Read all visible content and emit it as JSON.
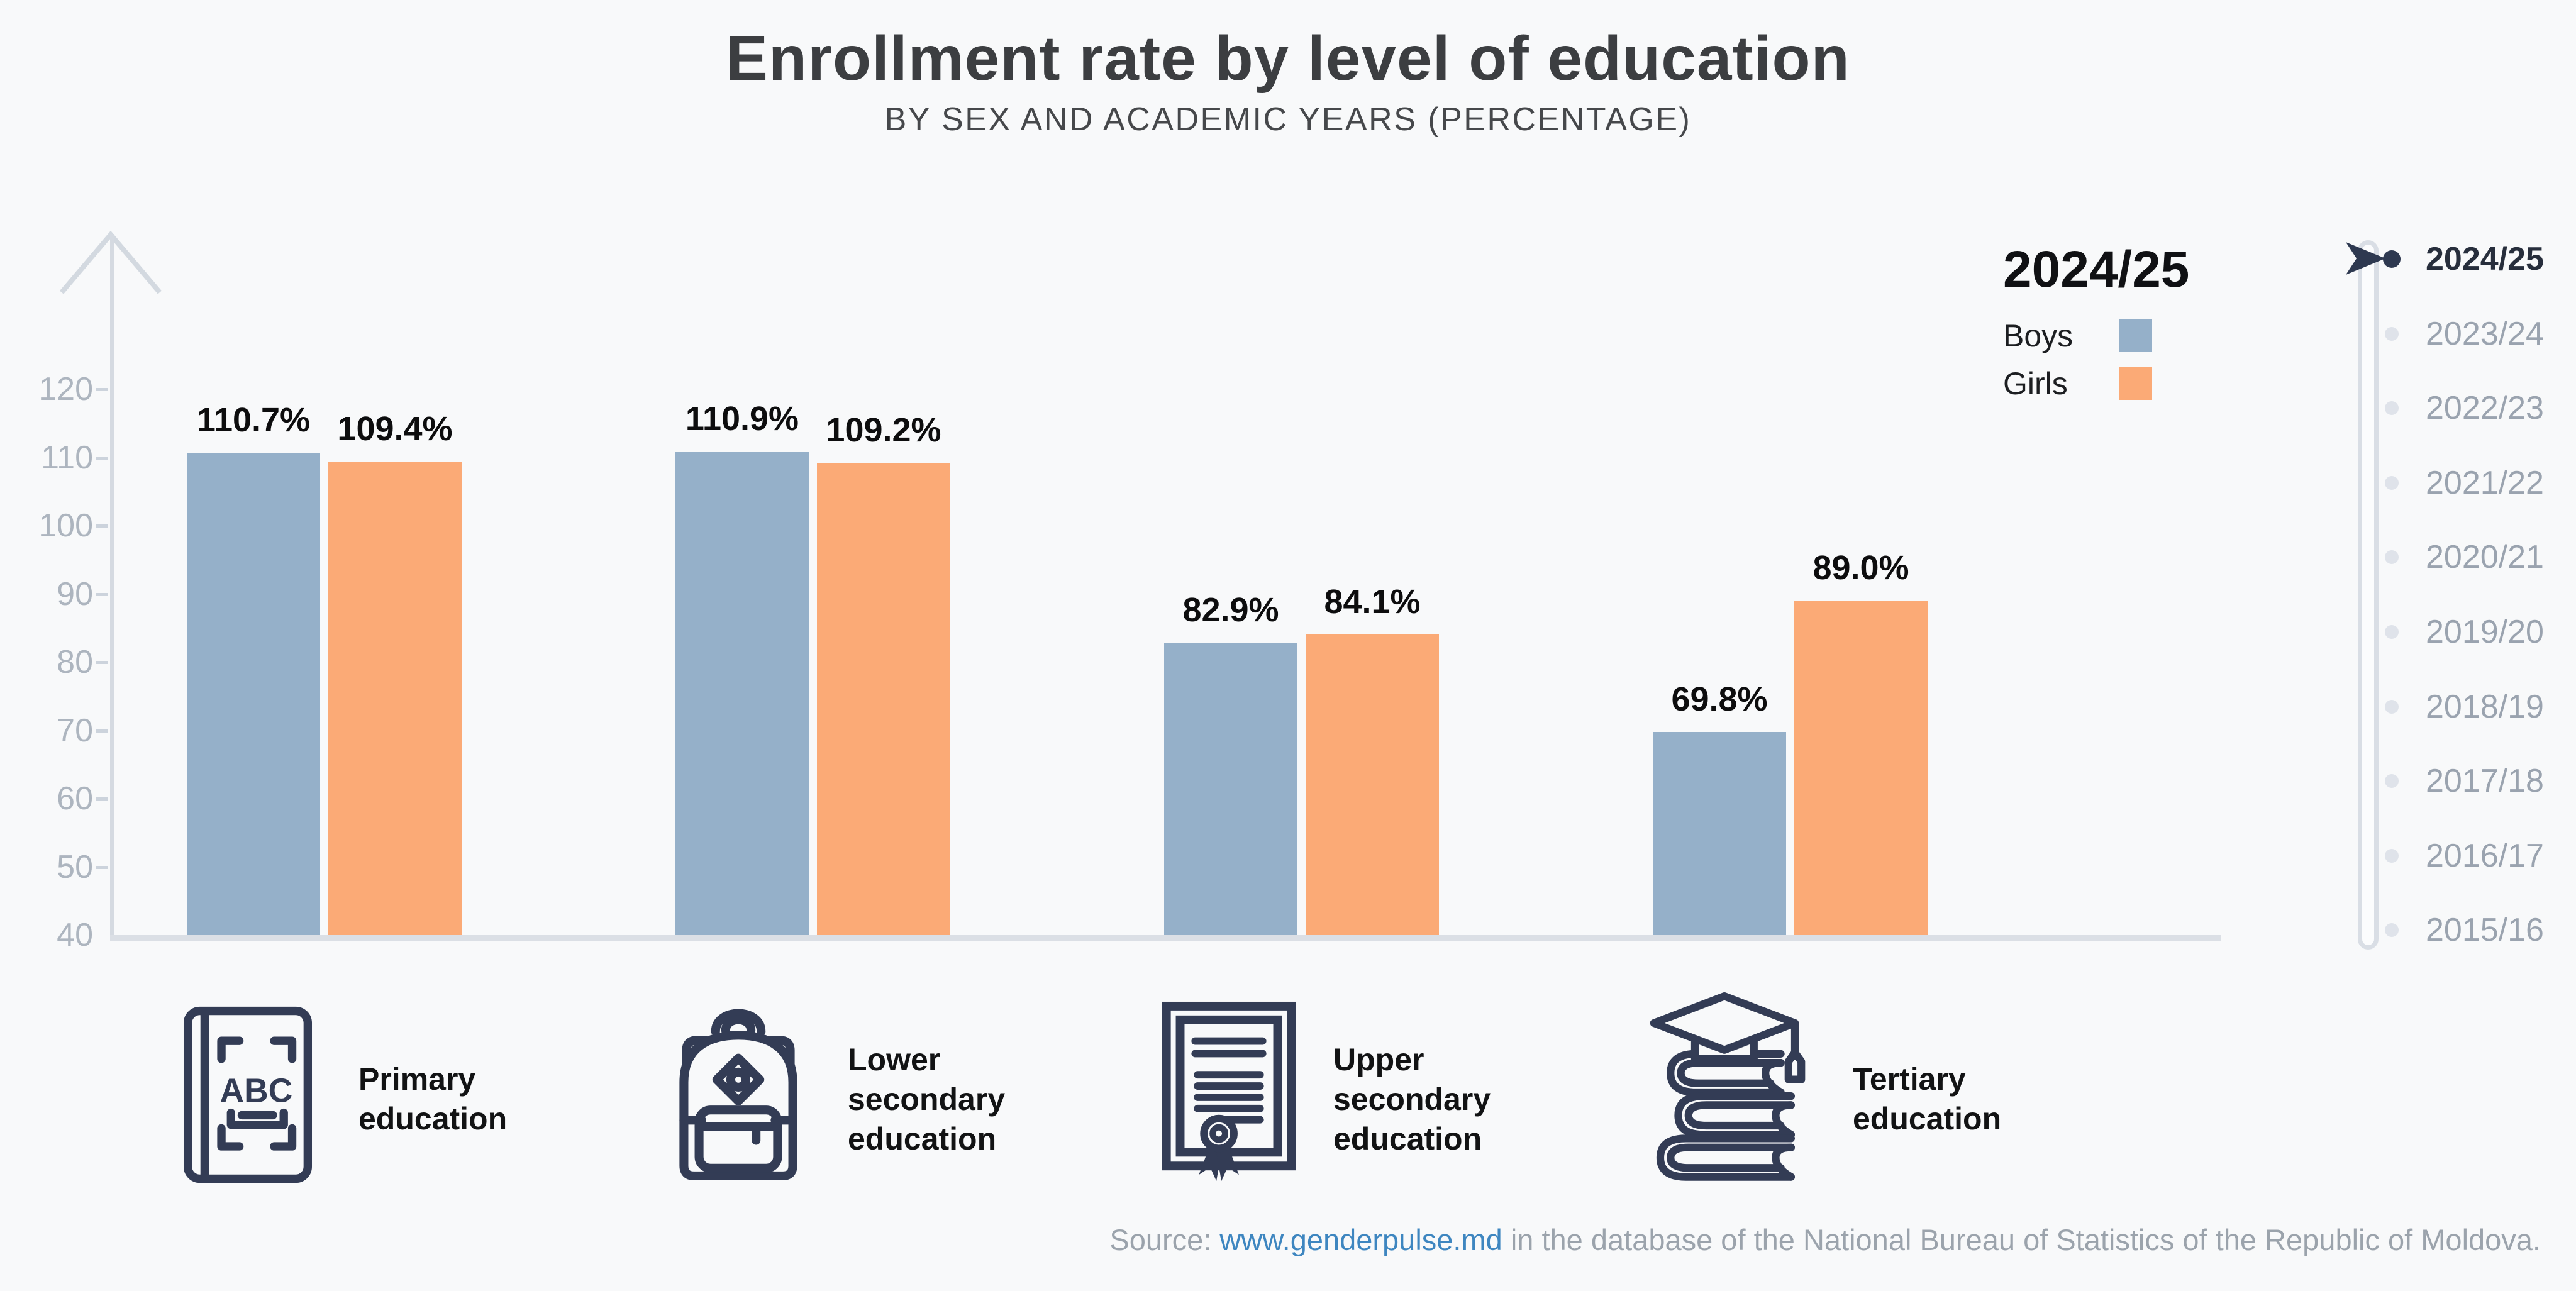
{
  "page": {
    "background": "#f8f9fa"
  },
  "header": {
    "title": "Enrollment rate by level of education",
    "subtitle": "BY SEX AND ACADEMIC YEARS (PERCENTAGE)"
  },
  "legend": {
    "selected_year": "2024/25",
    "items": [
      {
        "label": "Boys",
        "color": "#95b0c9"
      },
      {
        "label": "Girls",
        "color": "#fbaa76"
      }
    ]
  },
  "chart_data": {
    "type": "bar",
    "title": "Enrollment rate by level of education",
    "subtitle": "BY SEX AND ACADEMIC YEARS (PERCENTAGE)",
    "categories": [
      "Primary education",
      "Lower secondary education",
      "Upper secondary education",
      "Tertiary education"
    ],
    "series": [
      {
        "name": "Boys",
        "color": "#95b0c9",
        "values": [
          110.7,
          110.9,
          82.9,
          69.8
        ]
      },
      {
        "name": "Girls",
        "color": "#fbaa76",
        "values": [
          109.4,
          109.2,
          84.1,
          89.0
        ]
      }
    ],
    "value_suffix": "%",
    "ylim": [
      40,
      120
    ],
    "yticks": [
      120,
      110,
      100,
      90,
      80,
      70,
      60,
      50,
      40
    ],
    "grid": false,
    "legend_position": "top-right"
  },
  "year_selector": {
    "selected": "2024/25",
    "years": [
      "2024/25",
      "2023/24",
      "2022/23",
      "2021/22",
      "2020/21",
      "2019/20",
      "2018/19",
      "2017/18",
      "2016/17",
      "2015/16"
    ]
  },
  "categories": [
    {
      "label": "Primary education",
      "icon": "book-abc-icon"
    },
    {
      "label": "Lower secondary education",
      "icon": "backpack-icon"
    },
    {
      "label": "Upper secondary education",
      "icon": "diploma-icon"
    },
    {
      "label": "Tertiary education",
      "icon": "graduation-books-icon"
    }
  ],
  "source": {
    "prefix": "Source: ",
    "link_text": "www.genderpulse.md",
    "suffix": " in the database of the National Bureau of Statistics of the Republic of Moldova."
  }
}
